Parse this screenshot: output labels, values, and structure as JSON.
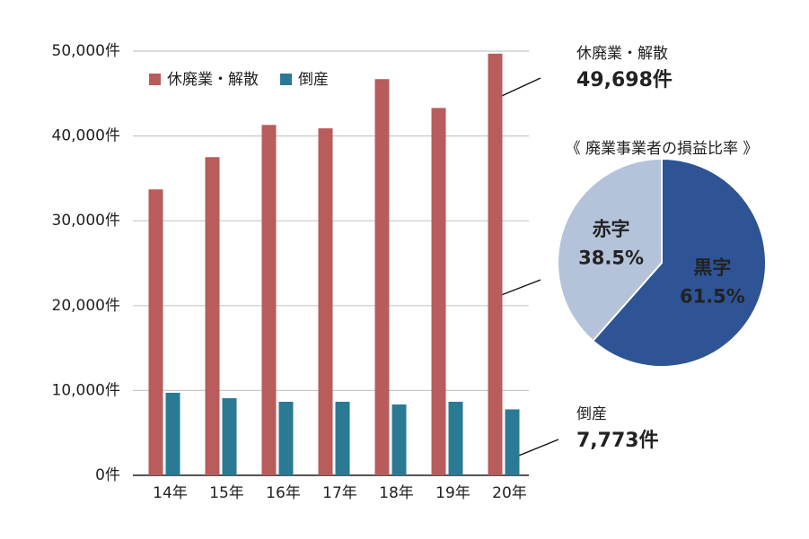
{
  "chart_data": [
    {
      "type": "bar",
      "categories": [
        "14年",
        "15年",
        "16年",
        "17年",
        "18年",
        "19年",
        "20年"
      ],
      "series": [
        {
          "name": "休廃業・解散",
          "color": "#b85c5c",
          "values": [
            33700,
            37500,
            41300,
            40900,
            46700,
            43300,
            49698
          ],
          "value_labels": [
            null,
            null,
            null,
            null,
            null,
            null,
            "49,698件"
          ]
        },
        {
          "name": "倒産",
          "color": "#2a7a94",
          "values": [
            9730,
            9090,
            8670,
            8670,
            8350,
            8670,
            7773
          ],
          "value_labels": [
            null,
            null,
            null,
            null,
            null,
            null,
            "7,773件"
          ]
        }
      ],
      "ylim": [
        0,
        50000
      ],
      "yticks": [
        {
          "value": 0,
          "label": "0件"
        },
        {
          "value": 10000,
          "label": "10,000件"
        },
        {
          "value": 20000,
          "label": "20,000件"
        },
        {
          "value": 30000,
          "label": "30,000件"
        },
        {
          "value": 40000,
          "label": "40,000件"
        },
        {
          "value": 50000,
          "label": "50,000件"
        }
      ],
      "grid": true,
      "legend": "top-left"
    },
    {
      "type": "pie",
      "title": "《 廃業事業者の損益比率 》",
      "categories": [
        "黒字",
        "赤字"
      ],
      "values": [
        61.5,
        38.5
      ],
      "value_labels": [
        "61.5%",
        "38.5%"
      ],
      "colors": [
        "#2e5496",
        "#b4c3da"
      ]
    }
  ]
}
